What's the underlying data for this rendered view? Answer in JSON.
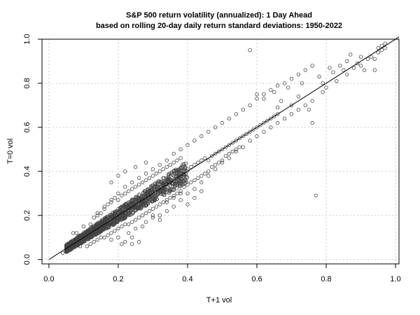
{
  "chart_data": {
    "type": "scatter",
    "title": "S&P 500 return volatility (annualized): 1 Day Ahead",
    "subtitle": "based on rolling 20-day daily return standard deviations: 1950-2022",
    "xlabel": "T+1 vol",
    "ylabel": "T=0 vol",
    "xlim": [
      -0.02,
      1.01
    ],
    "ylim": [
      -0.02,
      1.0
    ],
    "x_ticks": [
      "0.0",
      "0.2",
      "0.4",
      "0.6",
      "0.8",
      "1.0"
    ],
    "y_ticks": [
      "0.0",
      "0.2",
      "0.4",
      "0.6",
      "0.8",
      "1.0"
    ],
    "grid": true,
    "reference_line": {
      "type": "identity",
      "from": [
        0.0,
        0.0
      ],
      "to": [
        1.0,
        1.0
      ]
    },
    "colors": {
      "points": "#444444",
      "line": "#000000",
      "grid": "#cccccc"
    },
    "points": [
      [
        0.04,
        0.03
      ],
      [
        0.05,
        0.05
      ],
      [
        0.05,
        0.04
      ],
      [
        0.06,
        0.05
      ],
      [
        0.06,
        0.07
      ],
      [
        0.07,
        0.06
      ],
      [
        0.07,
        0.08
      ],
      [
        0.08,
        0.07
      ],
      [
        0.08,
        0.09
      ],
      [
        0.09,
        0.08
      ],
      [
        0.09,
        0.1
      ],
      [
        0.1,
        0.09
      ],
      [
        0.1,
        0.11
      ],
      [
        0.11,
        0.1
      ],
      [
        0.11,
        0.12
      ],
      [
        0.12,
        0.11
      ],
      [
        0.12,
        0.13
      ],
      [
        0.13,
        0.12
      ],
      [
        0.13,
        0.14
      ],
      [
        0.14,
        0.13
      ],
      [
        0.14,
        0.15
      ],
      [
        0.15,
        0.14
      ],
      [
        0.15,
        0.16
      ],
      [
        0.16,
        0.15
      ],
      [
        0.16,
        0.17
      ],
      [
        0.17,
        0.16
      ],
      [
        0.17,
        0.18
      ],
      [
        0.18,
        0.17
      ],
      [
        0.18,
        0.19
      ],
      [
        0.19,
        0.18
      ],
      [
        0.19,
        0.2
      ],
      [
        0.2,
        0.19
      ],
      [
        0.2,
        0.21
      ],
      [
        0.21,
        0.2
      ],
      [
        0.21,
        0.22
      ],
      [
        0.22,
        0.21
      ],
      [
        0.22,
        0.23
      ],
      [
        0.23,
        0.22
      ],
      [
        0.23,
        0.24
      ],
      [
        0.24,
        0.23
      ],
      [
        0.24,
        0.25
      ],
      [
        0.25,
        0.24
      ],
      [
        0.25,
        0.26
      ],
      [
        0.26,
        0.25
      ],
      [
        0.27,
        0.27
      ],
      [
        0.28,
        0.28
      ],
      [
        0.29,
        0.29
      ],
      [
        0.3,
        0.3
      ],
      [
        0.31,
        0.31
      ],
      [
        0.32,
        0.32
      ],
      [
        0.33,
        0.33
      ],
      [
        0.34,
        0.34
      ],
      [
        0.35,
        0.35
      ],
      [
        0.36,
        0.36
      ],
      [
        0.37,
        0.37
      ],
      [
        0.38,
        0.38
      ],
      [
        0.07,
        0.12
      ],
      [
        0.08,
        0.12
      ],
      [
        0.09,
        0.06
      ],
      [
        0.1,
        0.15
      ],
      [
        0.11,
        0.06
      ],
      [
        0.12,
        0.16
      ],
      [
        0.12,
        0.07
      ],
      [
        0.13,
        0.19
      ],
      [
        0.13,
        0.08
      ],
      [
        0.14,
        0.2
      ],
      [
        0.14,
        0.09
      ],
      [
        0.15,
        0.21
      ],
      [
        0.15,
        0.1
      ],
      [
        0.16,
        0.23
      ],
      [
        0.16,
        0.1
      ],
      [
        0.17,
        0.25
      ],
      [
        0.17,
        0.11
      ],
      [
        0.18,
        0.26
      ],
      [
        0.18,
        0.12
      ],
      [
        0.19,
        0.28
      ],
      [
        0.19,
        0.13
      ],
      [
        0.2,
        0.27
      ],
      [
        0.2,
        0.14
      ],
      [
        0.21,
        0.29
      ],
      [
        0.21,
        0.15
      ],
      [
        0.22,
        0.3
      ],
      [
        0.22,
        0.16
      ],
      [
        0.23,
        0.31
      ],
      [
        0.23,
        0.16
      ],
      [
        0.24,
        0.32
      ],
      [
        0.24,
        0.17
      ],
      [
        0.25,
        0.33
      ],
      [
        0.25,
        0.18
      ],
      [
        0.26,
        0.34
      ],
      [
        0.26,
        0.19
      ],
      [
        0.27,
        0.35
      ],
      [
        0.27,
        0.2
      ],
      [
        0.28,
        0.36
      ],
      [
        0.28,
        0.21
      ],
      [
        0.29,
        0.37
      ],
      [
        0.29,
        0.22
      ],
      [
        0.3,
        0.38
      ],
      [
        0.3,
        0.23
      ],
      [
        0.31,
        0.39
      ],
      [
        0.31,
        0.24
      ],
      [
        0.32,
        0.4
      ],
      [
        0.32,
        0.25
      ],
      [
        0.33,
        0.41
      ],
      [
        0.33,
        0.26
      ],
      [
        0.34,
        0.42
      ],
      [
        0.34,
        0.27
      ],
      [
        0.35,
        0.43
      ],
      [
        0.35,
        0.28
      ],
      [
        0.36,
        0.44
      ],
      [
        0.36,
        0.29
      ],
      [
        0.37,
        0.45
      ],
      [
        0.37,
        0.3
      ],
      [
        0.38,
        0.46
      ],
      [
        0.38,
        0.31
      ],
      [
        0.39,
        0.4
      ],
      [
        0.39,
        0.33
      ],
      [
        0.4,
        0.41
      ],
      [
        0.4,
        0.34
      ],
      [
        0.41,
        0.42
      ],
      [
        0.41,
        0.35
      ],
      [
        0.42,
        0.43
      ],
      [
        0.42,
        0.36
      ],
      [
        0.43,
        0.44
      ],
      [
        0.43,
        0.37
      ],
      [
        0.44,
        0.45
      ],
      [
        0.44,
        0.38
      ],
      [
        0.45,
        0.46
      ],
      [
        0.45,
        0.39
      ],
      [
        0.46,
        0.45
      ],
      [
        0.46,
        0.4
      ],
      [
        0.47,
        0.47
      ],
      [
        0.47,
        0.42
      ],
      [
        0.48,
        0.48
      ],
      [
        0.48,
        0.43
      ],
      [
        0.49,
        0.49
      ],
      [
        0.49,
        0.44
      ],
      [
        0.5,
        0.5
      ],
      [
        0.5,
        0.45
      ],
      [
        0.51,
        0.51
      ],
      [
        0.51,
        0.47
      ],
      [
        0.52,
        0.52
      ],
      [
        0.52,
        0.48
      ],
      [
        0.53,
        0.53
      ],
      [
        0.53,
        0.49
      ],
      [
        0.54,
        0.54
      ],
      [
        0.54,
        0.5
      ],
      [
        0.55,
        0.55
      ],
      [
        0.55,
        0.51
      ],
      [
        0.56,
        0.56
      ],
      [
        0.57,
        0.57
      ],
      [
        0.58,
        0.58
      ],
      [
        0.59,
        0.59
      ],
      [
        0.6,
        0.6
      ],
      [
        0.61,
        0.61
      ],
      [
        0.62,
        0.62
      ],
      [
        0.63,
        0.63
      ],
      [
        0.64,
        0.64
      ],
      [
        0.65,
        0.65
      ],
      [
        0.66,
        0.66
      ],
      [
        0.18,
        0.09
      ],
      [
        0.2,
        0.1
      ],
      [
        0.22,
        0.08
      ],
      [
        0.24,
        0.07
      ],
      [
        0.23,
        0.12
      ],
      [
        0.25,
        0.14
      ],
      [
        0.27,
        0.15
      ],
      [
        0.28,
        0.17
      ],
      [
        0.3,
        0.19
      ],
      [
        0.32,
        0.2
      ],
      [
        0.34,
        0.22
      ],
      [
        0.36,
        0.24
      ],
      [
        0.38,
        0.27
      ],
      [
        0.4,
        0.3
      ],
      [
        0.42,
        0.32
      ],
      [
        0.44,
        0.35
      ],
      [
        0.46,
        0.38
      ],
      [
        0.48,
        0.41
      ],
      [
        0.5,
        0.44
      ],
      [
        0.52,
        0.46
      ],
      [
        0.54,
        0.49
      ],
      [
        0.56,
        0.51
      ],
      [
        0.58,
        0.54
      ],
      [
        0.6,
        0.56
      ],
      [
        0.62,
        0.58
      ],
      [
        0.64,
        0.6
      ],
      [
        0.66,
        0.62
      ],
      [
        0.68,
        0.64
      ],
      [
        0.7,
        0.66
      ],
      [
        0.72,
        0.68
      ],
      [
        0.74,
        0.7
      ],
      [
        0.76,
        0.72
      ],
      [
        0.14,
        0.21
      ],
      [
        0.16,
        0.24
      ],
      [
        0.18,
        0.27
      ],
      [
        0.2,
        0.3
      ],
      [
        0.22,
        0.33
      ],
      [
        0.24,
        0.35
      ],
      [
        0.26,
        0.37
      ],
      [
        0.28,
        0.39
      ],
      [
        0.3,
        0.41
      ],
      [
        0.32,
        0.43
      ],
      [
        0.34,
        0.45
      ],
      [
        0.36,
        0.48
      ],
      [
        0.38,
        0.5
      ],
      [
        0.4,
        0.52
      ],
      [
        0.42,
        0.54
      ],
      [
        0.44,
        0.56
      ],
      [
        0.46,
        0.58
      ],
      [
        0.48,
        0.6
      ],
      [
        0.5,
        0.62
      ],
      [
        0.52,
        0.64
      ],
      [
        0.54,
        0.66
      ],
      [
        0.56,
        0.68
      ],
      [
        0.58,
        0.7
      ],
      [
        0.6,
        0.73
      ],
      [
        0.62,
        0.75
      ],
      [
        0.64,
        0.77
      ],
      [
        0.66,
        0.79
      ],
      [
        0.68,
        0.8
      ],
      [
        0.7,
        0.82
      ],
      [
        0.72,
        0.84
      ],
      [
        0.74,
        0.86
      ],
      [
        0.76,
        0.88
      ],
      [
        0.58,
        0.95
      ],
      [
        0.77,
        0.29
      ],
      [
        0.6,
        0.75
      ],
      [
        0.62,
        0.73
      ],
      [
        0.65,
        0.76
      ],
      [
        0.67,
        0.72
      ],
      [
        0.7,
        0.7
      ],
      [
        0.72,
        0.74
      ],
      [
        0.75,
        0.68
      ],
      [
        0.76,
        0.62
      ],
      [
        0.78,
        0.83
      ],
      [
        0.79,
        0.8
      ],
      [
        0.8,
        0.78
      ],
      [
        0.82,
        0.85
      ],
      [
        0.83,
        0.81
      ],
      [
        0.84,
        0.88
      ],
      [
        0.85,
        0.86
      ],
      [
        0.86,
        0.9
      ],
      [
        0.86,
        0.84
      ],
      [
        0.88,
        0.87
      ],
      [
        0.89,
        0.89
      ],
      [
        0.9,
        0.88
      ],
      [
        0.91,
        0.86
      ],
      [
        0.92,
        0.91
      ],
      [
        0.93,
        0.92
      ],
      [
        0.94,
        0.91
      ],
      [
        0.95,
        0.94
      ],
      [
        0.95,
        0.96
      ],
      [
        0.96,
        0.95
      ],
      [
        0.96,
        0.97
      ],
      [
        0.97,
        0.96
      ],
      [
        0.97,
        0.98
      ],
      [
        0.94,
        0.86
      ],
      [
        0.9,
        0.92
      ],
      [
        0.87,
        0.93
      ],
      [
        0.81,
        0.87
      ],
      [
        0.79,
        0.76
      ],
      [
        0.73,
        0.8
      ],
      [
        0.69,
        0.78
      ],
      [
        0.66,
        0.69
      ],
      [
        0.18,
        0.35
      ],
      [
        0.2,
        0.38
      ],
      [
        0.22,
        0.4
      ],
      [
        0.25,
        0.42
      ],
      [
        0.28,
        0.44
      ],
      [
        0.24,
        0.1
      ],
      [
        0.26,
        0.08
      ],
      [
        0.21,
        0.07
      ],
      [
        0.3,
        0.2
      ],
      [
        0.32,
        0.18
      ],
      [
        0.34,
        0.26
      ],
      [
        0.36,
        0.28
      ],
      [
        0.38,
        0.3
      ],
      [
        0.4,
        0.25
      ],
      [
        0.42,
        0.28
      ],
      [
        0.44,
        0.31
      ]
    ]
  }
}
